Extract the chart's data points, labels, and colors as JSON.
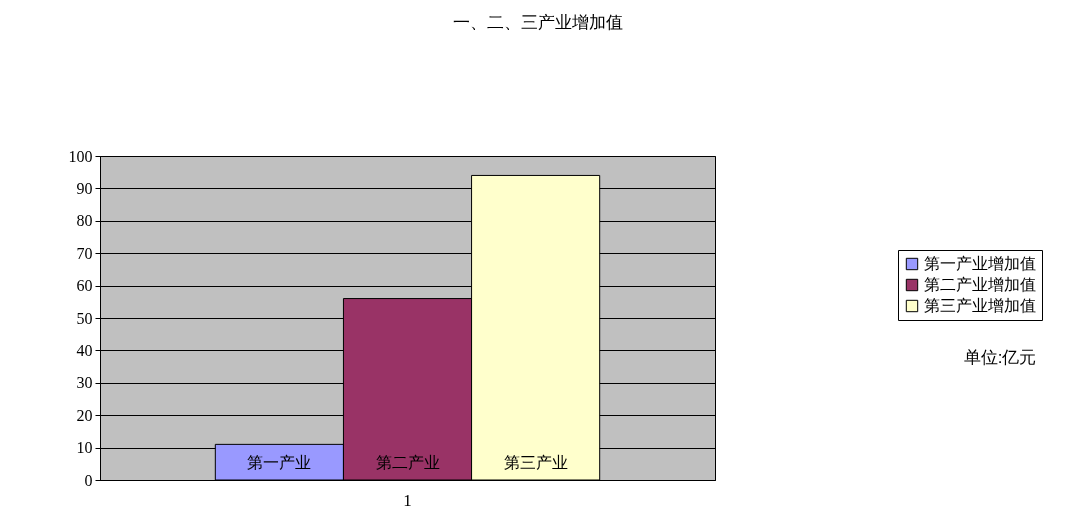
{
  "chart_data": {
    "type": "bar",
    "title": "一、二、三产业增加值",
    "categories": [
      "1"
    ],
    "series": [
      {
        "name": "第一产业增加值",
        "color": "#9999ff",
        "values": [
          11
        ],
        "value_labels": [
          "第一产业"
        ]
      },
      {
        "name": "第二产业增加值",
        "color": "#993366",
        "values": [
          56
        ],
        "value_labels": [
          "第二产业"
        ]
      },
      {
        "name": "第三产业增加值",
        "color": "#ffffcc",
        "values": [
          94
        ],
        "value_labels": [
          "第三产业"
        ]
      }
    ],
    "ylim": [
      0,
      100
    ],
    "yticks": [
      0,
      10,
      20,
      30,
      40,
      50,
      60,
      70,
      80,
      90,
      100
    ],
    "grid": "y",
    "legend": "right",
    "annotations": [
      "单位:亿元"
    ]
  }
}
